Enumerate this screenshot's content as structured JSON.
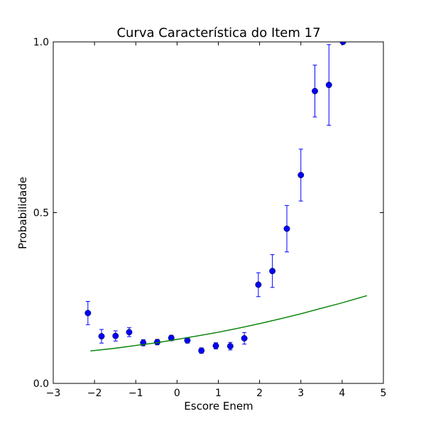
{
  "chart_data": {
    "type": "scatter",
    "title": "Curva Característica do Item 17",
    "xlabel": "Escore Enem",
    "ylabel": "Probabilidade",
    "xlim": [
      -3,
      5
    ],
    "ylim": [
      0.0,
      1.0
    ],
    "x_ticks": [
      {
        "value": -3,
        "label": "−3"
      },
      {
        "value": -2,
        "label": "−2"
      },
      {
        "value": -1,
        "label": "−1"
      },
      {
        "value": 0,
        "label": "0"
      },
      {
        "value": 1,
        "label": "1"
      },
      {
        "value": 2,
        "label": "2"
      },
      {
        "value": 3,
        "label": "3"
      },
      {
        "value": 4,
        "label": "4"
      },
      {
        "value": 5,
        "label": "5"
      }
    ],
    "y_ticks": [
      {
        "value": 0.0,
        "label": "0.0"
      },
      {
        "value": 0.5,
        "label": "0.5"
      },
      {
        "value": 1.0,
        "label": "1.0"
      }
    ],
    "grid": false,
    "series": [
      {
        "kind": "errorbar",
        "color": "#0000ff",
        "points": [
          {
            "x": -2.16,
            "y": 0.206,
            "err": 0.034
          },
          {
            "x": -1.83,
            "y": 0.138,
            "err": 0.02
          },
          {
            "x": -1.49,
            "y": 0.139,
            "err": 0.015
          },
          {
            "x": -1.16,
            "y": 0.15,
            "err": 0.013
          },
          {
            "x": -0.82,
            "y": 0.119,
            "err": 0.009
          },
          {
            "x": -0.48,
            "y": 0.121,
            "err": 0.008
          },
          {
            "x": -0.14,
            "y": 0.133,
            "err": 0.008
          },
          {
            "x": 0.25,
            "y": 0.126,
            "err": 0.008
          },
          {
            "x": 0.59,
            "y": 0.096,
            "err": 0.008
          },
          {
            "x": 0.94,
            "y": 0.11,
            "err": 0.009
          },
          {
            "x": 1.29,
            "y": 0.109,
            "err": 0.011
          },
          {
            "x": 1.63,
            "y": 0.132,
            "err": 0.017
          },
          {
            "x": 1.97,
            "y": 0.289,
            "err": 0.035
          },
          {
            "x": 2.31,
            "y": 0.329,
            "err": 0.048
          },
          {
            "x": 2.66,
            "y": 0.453,
            "err": 0.068
          },
          {
            "x": 3.0,
            "y": 0.61,
            "err": 0.076
          },
          {
            "x": 3.34,
            "y": 0.856,
            "err": 0.076
          },
          {
            "x": 3.68,
            "y": 0.874,
            "err": 0.118
          },
          {
            "x": 4.02,
            "y": 1.0,
            "err": 0.0
          }
        ]
      },
      {
        "kind": "line",
        "color": "#008000",
        "x": [
          -2.1,
          -1.5,
          -1.0,
          -0.5,
          0.0,
          0.5,
          1.0,
          1.5,
          2.0,
          2.5,
          3.0,
          3.5,
          4.0,
          4.6
        ],
        "y": [
          0.095,
          0.103,
          0.111,
          0.119,
          0.129,
          0.139,
          0.15,
          0.162,
          0.175,
          0.189,
          0.204,
          0.22,
          0.236,
          0.257
        ]
      }
    ]
  }
}
